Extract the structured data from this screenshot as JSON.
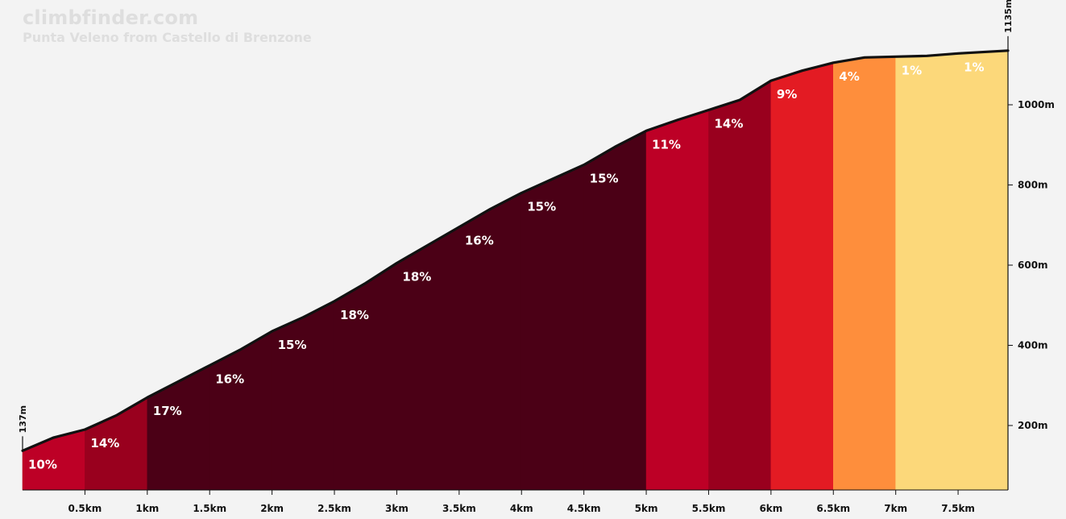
{
  "brand": "climbfinder.com",
  "climb_name": "Punta Veleno from Castello di Brenzone",
  "colors": {
    "background": "#f3f3f3",
    "profile_line": "#111111",
    "grade_colors": {
      "1": "#fcd87a",
      "4": "#fe8e3c",
      "9": "#e31b23",
      "10": "#bd0026",
      "11": "#bd0026",
      "14": "#99001e",
      "15": "#4b0016",
      "16": "#4b0016",
      "17": "#4b0016",
      "18": "#4b0016"
    }
  },
  "chart_data": {
    "type": "area",
    "title": "Punta Veleno from Castello di Brenzone",
    "x_unit": "km",
    "y_unit": "m",
    "xlim": [
      0,
      7.9
    ],
    "ylim": [
      0,
      1135
    ],
    "start_elevation_label": "137m",
    "end_elevation_label": "1135m",
    "x_ticks": [
      {
        "value": 0.5,
        "label": "0.5km"
      },
      {
        "value": 1,
        "label": "1km"
      },
      {
        "value": 1.5,
        "label": "1.5km"
      },
      {
        "value": 2,
        "label": "2km"
      },
      {
        "value": 2.5,
        "label": "2.5km"
      },
      {
        "value": 3,
        "label": "3km"
      },
      {
        "value": 3.5,
        "label": "3.5km"
      },
      {
        "value": 4,
        "label": "4km"
      },
      {
        "value": 4.5,
        "label": "4.5km"
      },
      {
        "value": 5,
        "label": "5km"
      },
      {
        "value": 5.5,
        "label": "5.5km"
      },
      {
        "value": 6,
        "label": "6km"
      },
      {
        "value": 6.5,
        "label": "6.5km"
      },
      {
        "value": 7,
        "label": "7km"
      },
      {
        "value": 7.5,
        "label": "7.5km"
      }
    ],
    "y_ticks": [
      {
        "value": 200,
        "label": "200m"
      },
      {
        "value": 400,
        "label": "400m"
      },
      {
        "value": 600,
        "label": "600m"
      },
      {
        "value": 800,
        "label": "800m"
      },
      {
        "value": 1000,
        "label": "1000m"
      }
    ],
    "profile": [
      {
        "x": 0,
        "y": 137
      },
      {
        "x": 0.25,
        "y": 170
      },
      {
        "x": 0.5,
        "y": 190
      },
      {
        "x": 0.75,
        "y": 225
      },
      {
        "x": 1.0,
        "y": 270
      },
      {
        "x": 1.25,
        "y": 310
      },
      {
        "x": 1.5,
        "y": 350
      },
      {
        "x": 1.75,
        "y": 390
      },
      {
        "x": 2.0,
        "y": 435
      },
      {
        "x": 2.25,
        "y": 470
      },
      {
        "x": 2.5,
        "y": 510
      },
      {
        "x": 2.75,
        "y": 555
      },
      {
        "x": 3.0,
        "y": 605
      },
      {
        "x": 3.25,
        "y": 650
      },
      {
        "x": 3.5,
        "y": 695
      },
      {
        "x": 3.75,
        "y": 740
      },
      {
        "x": 4.0,
        "y": 780
      },
      {
        "x": 4.25,
        "y": 815
      },
      {
        "x": 4.5,
        "y": 850
      },
      {
        "x": 4.75,
        "y": 895
      },
      {
        "x": 5.0,
        "y": 935
      },
      {
        "x": 5.25,
        "y": 962
      },
      {
        "x": 5.5,
        "y": 987
      },
      {
        "x": 5.75,
        "y": 1012
      },
      {
        "x": 6.0,
        "y": 1060
      },
      {
        "x": 6.25,
        "y": 1085
      },
      {
        "x": 6.5,
        "y": 1105
      },
      {
        "x": 6.75,
        "y": 1118
      },
      {
        "x": 7.0,
        "y": 1120
      },
      {
        "x": 7.25,
        "y": 1122
      },
      {
        "x": 7.5,
        "y": 1128
      },
      {
        "x": 7.9,
        "y": 1135
      }
    ],
    "segments": [
      {
        "start": 0.0,
        "end": 0.5,
        "grade": 10,
        "label": "10%"
      },
      {
        "start": 0.5,
        "end": 1.0,
        "grade": 14,
        "label": "14%"
      },
      {
        "start": 1.0,
        "end": 1.5,
        "grade": 17,
        "label": "17%"
      },
      {
        "start": 1.5,
        "end": 2.0,
        "grade": 16,
        "label": "16%"
      },
      {
        "start": 2.0,
        "end": 2.5,
        "grade": 15,
        "label": "15%"
      },
      {
        "start": 2.5,
        "end": 3.0,
        "grade": 18,
        "label": "18%"
      },
      {
        "start": 3.0,
        "end": 3.5,
        "grade": 18,
        "label": "18%"
      },
      {
        "start": 3.5,
        "end": 4.0,
        "grade": 16,
        "label": "16%"
      },
      {
        "start": 4.0,
        "end": 4.5,
        "grade": 15,
        "label": "15%"
      },
      {
        "start": 4.5,
        "end": 5.0,
        "grade": 15,
        "label": "15%"
      },
      {
        "start": 5.0,
        "end": 5.5,
        "grade": 11,
        "label": "11%"
      },
      {
        "start": 5.5,
        "end": 6.0,
        "grade": 14,
        "label": "14%"
      },
      {
        "start": 6.0,
        "end": 6.5,
        "grade": 9,
        "label": "9%"
      },
      {
        "start": 6.5,
        "end": 7.0,
        "grade": 4,
        "label": "4%"
      },
      {
        "start": 7.0,
        "end": 7.5,
        "grade": 1,
        "label": "1%"
      },
      {
        "start": 7.5,
        "end": 7.9,
        "grade": 1,
        "label": "1%"
      }
    ]
  }
}
